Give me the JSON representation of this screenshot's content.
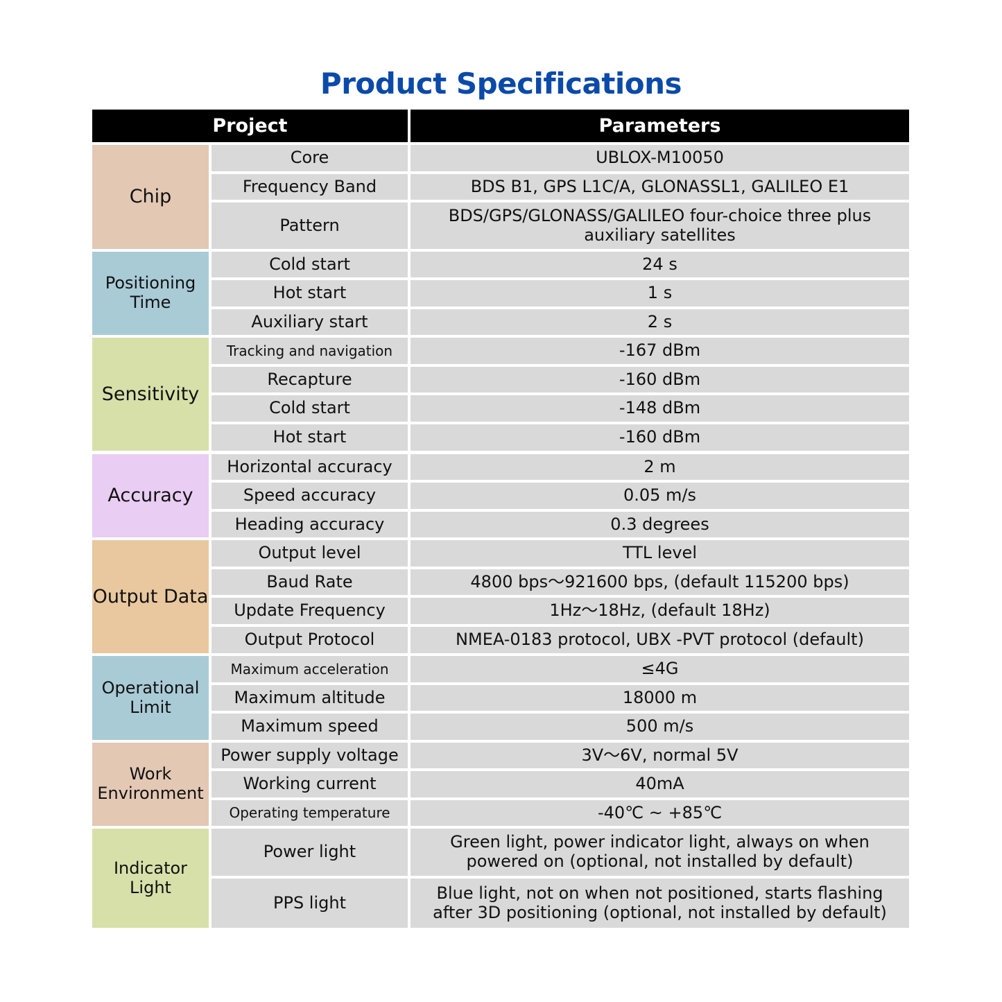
{
  "title": "Product Specifications",
  "header": {
    "project": "Project",
    "parameters": "Parameters"
  },
  "groups": [
    {
      "label": "Chip",
      "color": "#e3c8b4",
      "items": [
        {
          "name": "Core",
          "value": "UBLOX-M10050"
        },
        {
          "name": "Frequency Band",
          "value": "BDS B1, GPS L1C/A, GLONASSL1, GALILEO E1"
        },
        {
          "name": "Pattern",
          "value": "BDS/GPS/GLONASS/GALILEO four-choice three plus auxiliary satellites"
        }
      ]
    },
    {
      "label": "Positioning Time",
      "color": "#a9cbd6",
      "items": [
        {
          "name": "Cold start",
          "value": "24 s"
        },
        {
          "name": "Hot start",
          "value": "1 s"
        },
        {
          "name": "Auxiliary start",
          "value": "2 s"
        }
      ]
    },
    {
      "label": "Sensitivity",
      "color": "#d7e0a9",
      "items": [
        {
          "name": "Tracking and navigation",
          "value": "-167 dBm"
        },
        {
          "name": "Recapture",
          "value": "-160 dBm"
        },
        {
          "name": "Cold start",
          "value": "-148 dBm"
        },
        {
          "name": "Hot start",
          "value": "-160 dBm"
        }
      ]
    },
    {
      "label": "Accuracy",
      "color": "#e9cdf2",
      "items": [
        {
          "name": "Horizontal accuracy",
          "value": "2 m"
        },
        {
          "name": "Speed accuracy",
          "value": "0.05 m/s"
        },
        {
          "name": "Heading accuracy",
          "value": "0.3 degrees"
        }
      ]
    },
    {
      "label": "Output Data",
      "color": "#e9c89f",
      "items": [
        {
          "name": "Output level",
          "value": "TTL level"
        },
        {
          "name": "Baud Rate",
          "value": "4800 bps～921600 bps, (default 115200 bps)"
        },
        {
          "name": "Update Frequency",
          "value": "1Hz～18Hz, (default 18Hz)"
        },
        {
          "name": "Output Protocol",
          "value": "NMEA-0183 protocol, UBX -PVT protocol (default)"
        }
      ]
    },
    {
      "label": "Operational Limit",
      "color": "#a9cbd6",
      "items": [
        {
          "name": "Maximum acceleration",
          "value": "≤4G"
        },
        {
          "name": "Maximum altitude",
          "value": "18000 m"
        },
        {
          "name": "Maximum speed",
          "value": "500 m/s"
        }
      ]
    },
    {
      "label": "Work Environment",
      "color": "#e3c8b4",
      "items": [
        {
          "name": "Power supply voltage",
          "value": "3V～6V, normal 5V"
        },
        {
          "name": "Working current",
          "value": "40mA"
        },
        {
          "name": "Operating temperature",
          "value": "-40℃ ~ +85℃"
        }
      ]
    },
    {
      "label": "Indicator Light",
      "color": "#d7e0a9",
      "items": [
        {
          "name": "Power light",
          "value": "Green light, power indicator light, always on when powered on (optional, not installed by default)"
        },
        {
          "name": "PPS light",
          "value": "Blue light, not on when not positioned, starts flashing after 3D positioning (optional, not installed by default)"
        }
      ]
    }
  ]
}
